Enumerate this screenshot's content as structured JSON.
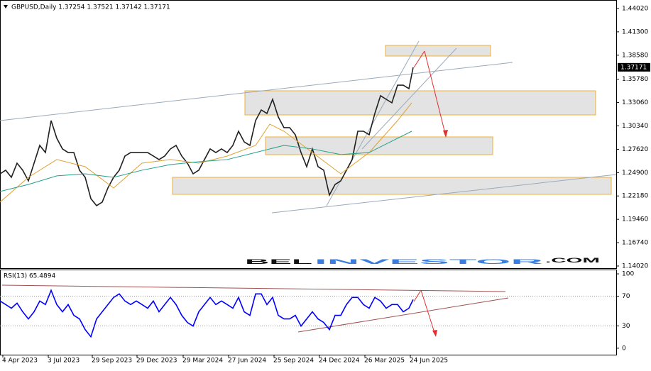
{
  "chart_data": [
    {
      "type": "line",
      "title": "GBPUSD,Daily  1.37254 1.37521 1.37142 1.37171",
      "last_price": 1.37171,
      "xlim": [
        0,
        868
      ],
      "ylim": [
        1.1377,
        1.4501
      ],
      "yticks": [
        {
          "value": 1.4402,
          "label": "1.44020"
        },
        {
          "value": 1.413,
          "label": "1.41300"
        },
        {
          "value": 1.3858,
          "label": "1.38580"
        },
        {
          "value": 1.3578,
          "label": "1.35780"
        },
        {
          "value": 1.3306,
          "label": "1.33060"
        },
        {
          "value": 1.3034,
          "label": "1.30340"
        },
        {
          "value": 1.2762,
          "label": "1.27620"
        },
        {
          "value": 1.249,
          "label": "1.24900"
        },
        {
          "value": 1.2218,
          "label": "1.22180"
        },
        {
          "value": 1.1946,
          "label": "1.19460"
        },
        {
          "value": 1.1674,
          "label": "1.16740"
        },
        {
          "value": 1.1402,
          "label": "1.14020"
        }
      ],
      "series": [
        {
          "name": "GBPUSD",
          "color": "#202020",
          "x": [
            0,
            8,
            16,
            24,
            32,
            40,
            48,
            56,
            64,
            72,
            80,
            88,
            96,
            104,
            112,
            120,
            128,
            136,
            144,
            152,
            160,
            168,
            176,
            184,
            192,
            200,
            208,
            216,
            224,
            232,
            240,
            248,
            256,
            264,
            272,
            280,
            288,
            296,
            304,
            312,
            320,
            328,
            336,
            344,
            352,
            360,
            368,
            376,
            384,
            392,
            400,
            408,
            416,
            424,
            432,
            440,
            448,
            456,
            464,
            472,
            480,
            488,
            496,
            504,
            512,
            520,
            528,
            536,
            544,
            552,
            560,
            568,
            576,
            582
          ],
          "values": [
            1.2476,
            1.2518,
            1.2435,
            1.26,
            1.2518,
            1.2394,
            1.26,
            1.2807,
            1.2724,
            1.3096,
            1.289,
            1.2766,
            1.2724,
            1.2724,
            1.2518,
            1.2435,
            1.2187,
            1.2105,
            1.2146,
            1.2311,
            1.2435,
            1.2518,
            1.2683,
            1.2724,
            1.2724,
            1.2724,
            1.2724,
            1.2683,
            1.2642,
            1.2683,
            1.2766,
            1.2807,
            1.2683,
            1.26,
            1.2476,
            1.2518,
            1.2642,
            1.2766,
            1.2724,
            1.2766,
            1.2724,
            1.2807,
            1.2972,
            1.2848,
            1.2807,
            1.3096,
            1.322,
            1.3179,
            1.3344,
            1.3138,
            1.3014,
            1.3014,
            1.2931,
            1.2724,
            1.2559,
            1.2766,
            1.2559,
            1.2518,
            1.2228,
            1.2352,
            1.2394,
            1.2518,
            1.2642,
            1.2972,
            1.2972,
            1.2931,
            1.3179,
            1.3386,
            1.3344,
            1.3303,
            1.3509,
            1.3509,
            1.3468,
            1.3717
          ]
        },
        {
          "name": "MA fast",
          "color": "#e0a030",
          "x": [
            0,
            40,
            80,
            120,
            160,
            200,
            240,
            280,
            320,
            360,
            380,
            400,
            440,
            480,
            520,
            560,
            580
          ],
          "values": [
            1.2146,
            1.2435,
            1.2642,
            1.2559,
            1.2311,
            1.26,
            1.2642,
            1.26,
            1.2683,
            1.2807,
            1.3055,
            1.2972,
            1.2724,
            1.2476,
            1.2724,
            1.3096,
            1.3303
          ]
        },
        {
          "name": "MA slow",
          "color": "#20a08a",
          "x": [
            0,
            40,
            80,
            120,
            160,
            200,
            240,
            280,
            320,
            360,
            380,
            400,
            440,
            480,
            520,
            560,
            580
          ],
          "values": [
            1.227,
            1.2352,
            1.2452,
            1.2476,
            1.2435,
            1.2518,
            1.2584,
            1.2617,
            1.2642,
            1.2724,
            1.2766,
            1.2807,
            1.2766,
            1.27,
            1.2724,
            1.289,
            1.2972
          ]
        }
      ]
    },
    {
      "type": "line",
      "title": "RSI(13) 65.4894",
      "xlim": [
        0,
        868
      ],
      "ylim": [
        -8.7,
        105.8
      ],
      "yticks": [
        100,
        70,
        30,
        0
      ],
      "levels": [
        70,
        30
      ],
      "xticks": [
        {
          "value": 4,
          "label": "4 Apr 2023"
        },
        {
          "value": 68,
          "label": "3 Jul 2023"
        },
        {
          "value": 130,
          "label": "29 Sep 2023"
        },
        {
          "value": 193,
          "label": "29 Dec 2023"
        },
        {
          "value": 258,
          "label": "29 Mar 2024"
        },
        {
          "value": 322,
          "label": "27 Jun 2024"
        },
        {
          "value": 386,
          "label": "25 Sep 2024"
        },
        {
          "value": 450,
          "label": "24 Dec 2024"
        },
        {
          "value": 514,
          "label": "26 Mar 2025"
        },
        {
          "value": 578,
          "label": "24 Jun 2025"
        }
      ],
      "series": [
        {
          "name": "RSI",
          "color": "#0000ff",
          "x": [
            0,
            8,
            16,
            24,
            32,
            40,
            48,
            56,
            64,
            72,
            80,
            88,
            96,
            104,
            112,
            120,
            128,
            136,
            144,
            152,
            160,
            168,
            176,
            184,
            192,
            200,
            208,
            216,
            224,
            232,
            240,
            248,
            256,
            264,
            272,
            280,
            288,
            296,
            304,
            312,
            320,
            328,
            336,
            344,
            352,
            360,
            368,
            376,
            384,
            392,
            400,
            408,
            416,
            424,
            432,
            440,
            448,
            456,
            464,
            472,
            480,
            488,
            496,
            504,
            512,
            520,
            528,
            536,
            544,
            552,
            560,
            568,
            576,
            582
          ],
          "values": [
            63.5,
            58.7,
            53.8,
            60.6,
            49.0,
            39.4,
            49.0,
            63.5,
            58.7,
            77.9,
            58.7,
            49.0,
            58.7,
            44.2,
            39.4,
            25.0,
            15.4,
            39.4,
            49.0,
            58.7,
            68.3,
            73.1,
            63.5,
            58.7,
            63.5,
            58.7,
            53.8,
            63.5,
            49.0,
            58.7,
            68.3,
            58.7,
            44.2,
            34.6,
            29.8,
            49.0,
            58.7,
            68.3,
            58.7,
            63.5,
            58.7,
            53.8,
            68.3,
            49.0,
            44.2,
            73.1,
            73.1,
            58.7,
            68.3,
            44.2,
            39.4,
            39.4,
            44.2,
            29.8,
            39.4,
            49.0,
            39.4,
            34.6,
            25.0,
            44.2,
            44.2,
            58.7,
            68.3,
            68.3,
            58.7,
            53.8,
            68.3,
            63.5,
            53.8,
            58.7,
            58.7,
            49.0,
            53.8,
            65.5
          ]
        }
      ]
    }
  ],
  "watermark": {
    "bel": "BEL",
    "investor": "INVESTOR",
    "com": ".COM"
  }
}
